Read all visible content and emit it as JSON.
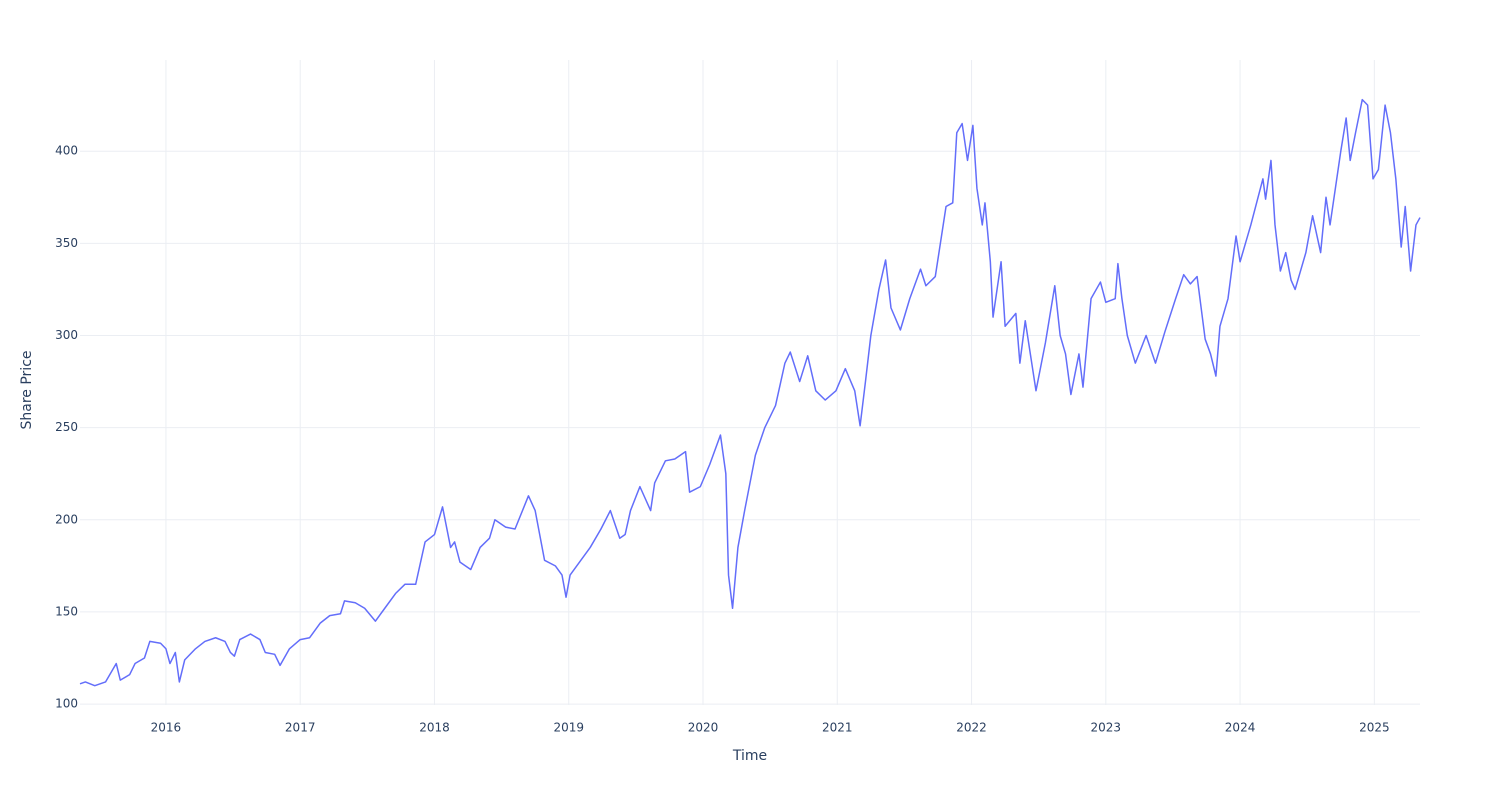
{
  "chart_data": {
    "type": "line",
    "xlabel": "Time",
    "ylabel": "Share Price",
    "xlim": [
      2015.36,
      2025.34
    ],
    "xticks": [
      2016,
      2017,
      2018,
      2019,
      2020,
      2021,
      2022,
      2023,
      2024,
      2025
    ],
    "ylim": [
      99.5,
      449.5
    ],
    "yticks": [
      100,
      150,
      200,
      250,
      300,
      350,
      400
    ],
    "grid": true,
    "x": [
      2015.36,
      2015.4,
      2015.47,
      2015.55,
      2015.63,
      2015.66,
      2015.73,
      2015.77,
      2015.84,
      2015.88,
      2015.96,
      2016.0,
      2016.03,
      2016.07,
      2016.1,
      2016.14,
      2016.22,
      2016.29,
      2016.37,
      2016.44,
      2016.48,
      2016.51,
      2016.55,
      2016.63,
      2016.7,
      2016.74,
      2016.81,
      2016.85,
      2016.92,
      2017.0,
      2017.07,
      2017.15,
      2017.22,
      2017.3,
      2017.33,
      2017.41,
      2017.48,
      2017.56,
      2017.63,
      2017.71,
      2017.78,
      2017.86,
      2017.93,
      2018.0,
      2018.06,
      2018.12,
      2018.15,
      2018.19,
      2018.27,
      2018.34,
      2018.41,
      2018.45,
      2018.53,
      2018.6,
      2018.7,
      2018.75,
      2018.82,
      2018.9,
      2018.95,
      2018.98,
      2019.01,
      2019.09,
      2019.16,
      2019.24,
      2019.31,
      2019.38,
      2019.42,
      2019.46,
      2019.53,
      2019.61,
      2019.64,
      2019.72,
      2019.79,
      2019.87,
      2019.9,
      2019.98,
      2020.05,
      2020.13,
      2020.17,
      2020.19,
      2020.22,
      2020.26,
      2020.31,
      2020.39,
      2020.46,
      2020.54,
      2020.61,
      2020.65,
      2020.72,
      2020.78,
      2020.84,
      2020.91,
      2020.99,
      2021.06,
      2021.13,
      2021.17,
      2021.21,
      2021.25,
      2021.31,
      2021.36,
      2021.4,
      2021.47,
      2021.54,
      2021.62,
      2021.66,
      2021.73,
      2021.81,
      2021.86,
      2021.89,
      2021.93,
      2021.97,
      2022.01,
      2022.04,
      2022.08,
      2022.1,
      2022.14,
      2022.16,
      2022.22,
      2022.25,
      2022.33,
      2022.36,
      2022.4,
      2022.48,
      2022.55,
      2022.62,
      2022.66,
      2022.7,
      2022.74,
      2022.8,
      2022.83,
      2022.89,
      2022.96,
      2023.0,
      2023.07,
      2023.09,
      2023.12,
      2023.16,
      2023.22,
      2023.3,
      2023.37,
      2023.44,
      2023.52,
      2023.58,
      2023.63,
      2023.68,
      2023.74,
      2023.78,
      2023.82,
      2023.85,
      2023.91,
      2023.97,
      2024.0,
      2024.08,
      2024.17,
      2024.19,
      2024.23,
      2024.26,
      2024.3,
      2024.34,
      2024.38,
      2024.41,
      2024.49,
      2024.54,
      2024.6,
      2024.64,
      2024.67,
      2024.75,
      2024.79,
      2024.82,
      2024.86,
      2024.91,
      2024.95,
      2024.99,
      2025.03,
      2025.08,
      2025.12,
      2025.16,
      2025.2,
      2025.23,
      2025.27,
      2025.31,
      2025.34
    ],
    "series": [
      {
        "color": "#636efa",
        "values": [
          111,
          112,
          110,
          112,
          122,
          113,
          116,
          122,
          125,
          134,
          133,
          130,
          122,
          128,
          112,
          124,
          130,
          134,
          136,
          134,
          128,
          126,
          135,
          138,
          135,
          128,
          127,
          121,
          130,
          135,
          136,
          144,
          148,
          149,
          156,
          155,
          152,
          145,
          152,
          160,
          165,
          165,
          188,
          192,
          207,
          185,
          188,
          177,
          173,
          185,
          190,
          200,
          196,
          195,
          213,
          205,
          178,
          175,
          170,
          158,
          170,
          178,
          185,
          195,
          205,
          190,
          192,
          205,
          218,
          205,
          220,
          232,
          233,
          237,
          215,
          218,
          230,
          246,
          225,
          170,
          152,
          185,
          205,
          235,
          250,
          262,
          285,
          291,
          275,
          289,
          270,
          265,
          270,
          282,
          270,
          251,
          275,
          300,
          325,
          341,
          315,
          303,
          320,
          336,
          327,
          332,
          370,
          372,
          410,
          415,
          395,
          414,
          380,
          360,
          372,
          340,
          310,
          340,
          305,
          312,
          285,
          308,
          270,
          296,
          327,
          300,
          290,
          268,
          290,
          272,
          320,
          329,
          318,
          320,
          339,
          320,
          300,
          285,
          300,
          285,
          302,
          320,
          333,
          328,
          332,
          298,
          290,
          278,
          305,
          320,
          354,
          340,
          360,
          385,
          374,
          395,
          360,
          335,
          345,
          330,
          325,
          345,
          365,
          345,
          375,
          360,
          400,
          418,
          395,
          410,
          428,
          425,
          385,
          390,
          425,
          410,
          385,
          348,
          370,
          335,
          360,
          364
        ]
      }
    ]
  }
}
